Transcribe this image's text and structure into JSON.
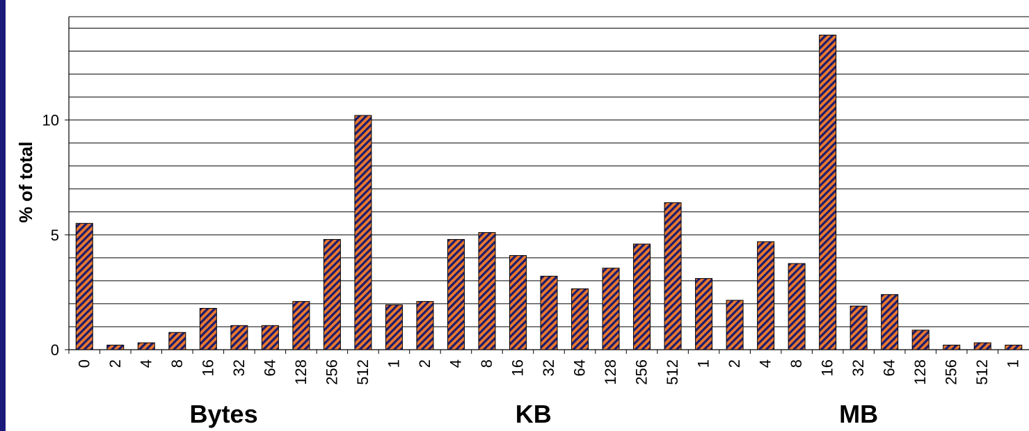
{
  "chart_data": {
    "type": "bar",
    "ylabel": "% of total",
    "ylim": [
      0,
      14.5
    ],
    "yticks": [
      0,
      5,
      10
    ],
    "grid": true,
    "categories": [
      "0",
      "2",
      "4",
      "8",
      "16",
      "32",
      "64",
      "128",
      "256",
      "512",
      "1",
      "2",
      "4",
      "8",
      "16",
      "32",
      "64",
      "128",
      "256",
      "512",
      "1",
      "2",
      "4",
      "8",
      "16",
      "32",
      "64",
      "128",
      "256",
      "512",
      "1"
    ],
    "values": [
      5.5,
      0.2,
      0.3,
      0.75,
      1.8,
      1.05,
      1.05,
      2.1,
      4.8,
      10.2,
      1.95,
      2.1,
      4.8,
      5.1,
      4.1,
      3.2,
      2.65,
      3.55,
      4.6,
      6.4,
      3.1,
      2.15,
      4.7,
      3.75,
      13.7,
      1.9,
      2.4,
      0.85,
      0.2,
      0.3,
      0.2
    ],
    "groups": [
      {
        "label": "Bytes",
        "start": 0,
        "end": 9
      },
      {
        "label": "KB",
        "start": 10,
        "end": 19
      },
      {
        "label": "MB",
        "start": 20,
        "end": 30
      }
    ],
    "bar_fill": "#e87830",
    "bar_hatch": "#1c1c6e"
  }
}
